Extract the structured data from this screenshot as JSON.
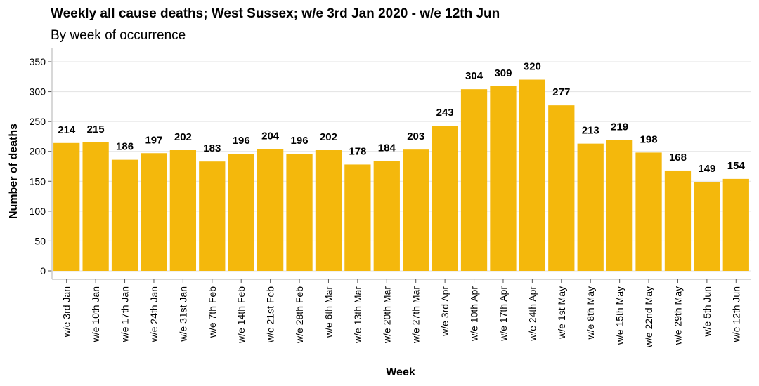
{
  "chart_data": {
    "type": "bar",
    "title": "Weekly all cause deaths; West Sussex; w/e 3rd Jan 2020 - w/e 12th Jun",
    "subtitle": "By week of occurrence",
    "xlabel": "Week",
    "ylabel": "Number of deaths",
    "ylim": [
      0,
      350
    ],
    "yticks": [
      0,
      50,
      100,
      150,
      200,
      250,
      300,
      350
    ],
    "grid": true,
    "bar_color": "#F4B80C",
    "categories": [
      "w/e 3rd Jan",
      "w/e 10th Jan",
      "w/e 17th Jan",
      "w/e 24th Jan",
      "w/e 31st Jan",
      "w/e 7th Feb",
      "w/e 14th Feb",
      "w/e 21st Feb",
      "w/e 28th Feb",
      "w/e 6th Mar",
      "w/e 13th Mar",
      "w/e 20th Mar",
      "w/e 27th Mar",
      "w/e 3rd Apr",
      "w/e 10th Apr",
      "w/e 17th Apr",
      "w/e 24th Apr",
      "w/e 1st May",
      "w/e 8th May",
      "w/e 15th May",
      "w/e 22nd May",
      "w/e 29th May",
      "w/e 5th Jun",
      "w/e 12th Jun"
    ],
    "values": [
      214,
      215,
      186,
      197,
      202,
      183,
      196,
      204,
      196,
      202,
      178,
      184,
      203,
      243,
      304,
      309,
      320,
      277,
      213,
      219,
      198,
      168,
      149,
      154
    ]
  }
}
